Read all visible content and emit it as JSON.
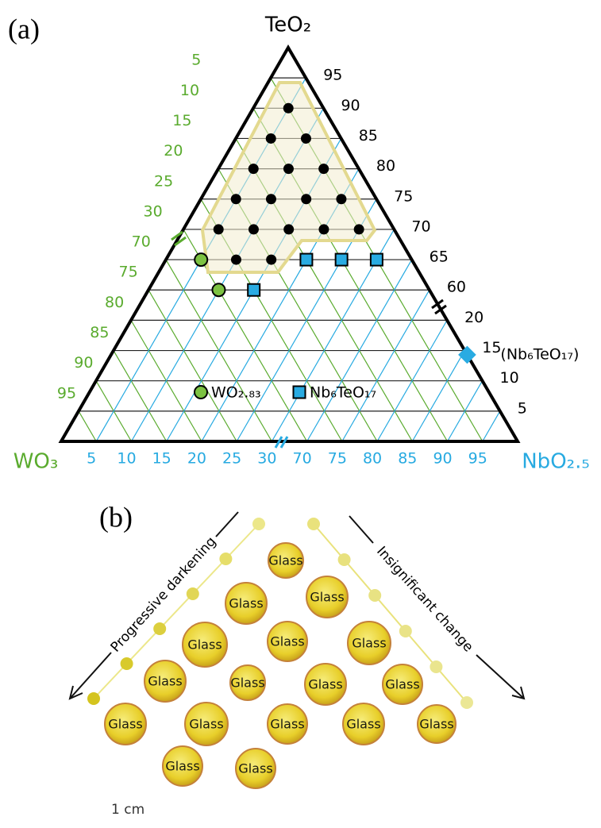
{
  "chart_data": {
    "type": "ternary",
    "panel_label": "(a)",
    "axes": {
      "teo2": {
        "label": "TeO₂",
        "color": "#000000",
        "lim": [
          0,
          100
        ],
        "ticks": [
          5,
          10,
          15,
          20,
          60,
          65,
          70,
          75,
          80,
          85,
          90,
          95
        ]
      },
      "wo3": {
        "label": "WO₃",
        "color": "#5aab2e",
        "lim": [
          0,
          100
        ],
        "ticks": [
          5,
          10,
          15,
          20,
          25,
          30,
          70,
          75,
          80,
          85,
          90,
          95
        ]
      },
      "nbo25": {
        "label": "NbO₂.₅",
        "color": "#27aae1",
        "lim": [
          0,
          100
        ],
        "ticks": [
          5,
          10,
          15,
          20,
          25,
          30,
          70,
          75,
          80,
          85,
          90,
          95
        ]
      }
    },
    "series": [
      {
        "marker": "dot",
        "color": "#000000",
        "teo2": [
          90,
          85,
          85,
          80,
          80,
          80,
          75,
          75,
          75,
          75,
          70,
          70,
          70,
          70,
          70,
          65,
          65
        ],
        "wo3": [
          5,
          10,
          5,
          15,
          10,
          5,
          20,
          15,
          10,
          5,
          25,
          20,
          15,
          10,
          5,
          25,
          20
        ],
        "nbo25": [
          5,
          5,
          10,
          5,
          10,
          15,
          5,
          10,
          15,
          20,
          5,
          10,
          15,
          20,
          25,
          10,
          15
        ]
      },
      {
        "name": "WO₂.₈₃",
        "marker": "circle",
        "color": "#7cc242",
        "teo2": [
          65,
          60
        ],
        "wo3": [
          30,
          30
        ],
        "nbo25": [
          5,
          10
        ]
      },
      {
        "name": "Nb₆TeO₁₇",
        "marker": "square",
        "color": "#29abe2",
        "teo2": [
          65,
          65,
          65,
          60
        ],
        "wo3": [
          15,
          10,
          5,
          25
        ],
        "nbo25": [
          20,
          25,
          30,
          15
        ]
      },
      {
        "label": "(Nb₆TeO₁₇)",
        "marker": "diamond",
        "color": "#29abe2",
        "teo2": [
          14.3
        ],
        "wo3": [
          0
        ],
        "nbo25": [
          85.7
        ]
      }
    ]
  },
  "photo": {
    "panel_label": "(b)",
    "left_arrow": "Progressive darkening",
    "right_arrow": "Insignificant change",
    "bead_labels": [
      "Glass",
      "Glass",
      "Glass",
      "Glass",
      "Glass",
      "Glass",
      "Glass",
      "Glass",
      "Glass",
      "Glass",
      "Glass",
      "Glass",
      "Glass",
      "Glass",
      "Glass",
      "Glass",
      "Glass"
    ],
    "scale": "1 cm"
  }
}
